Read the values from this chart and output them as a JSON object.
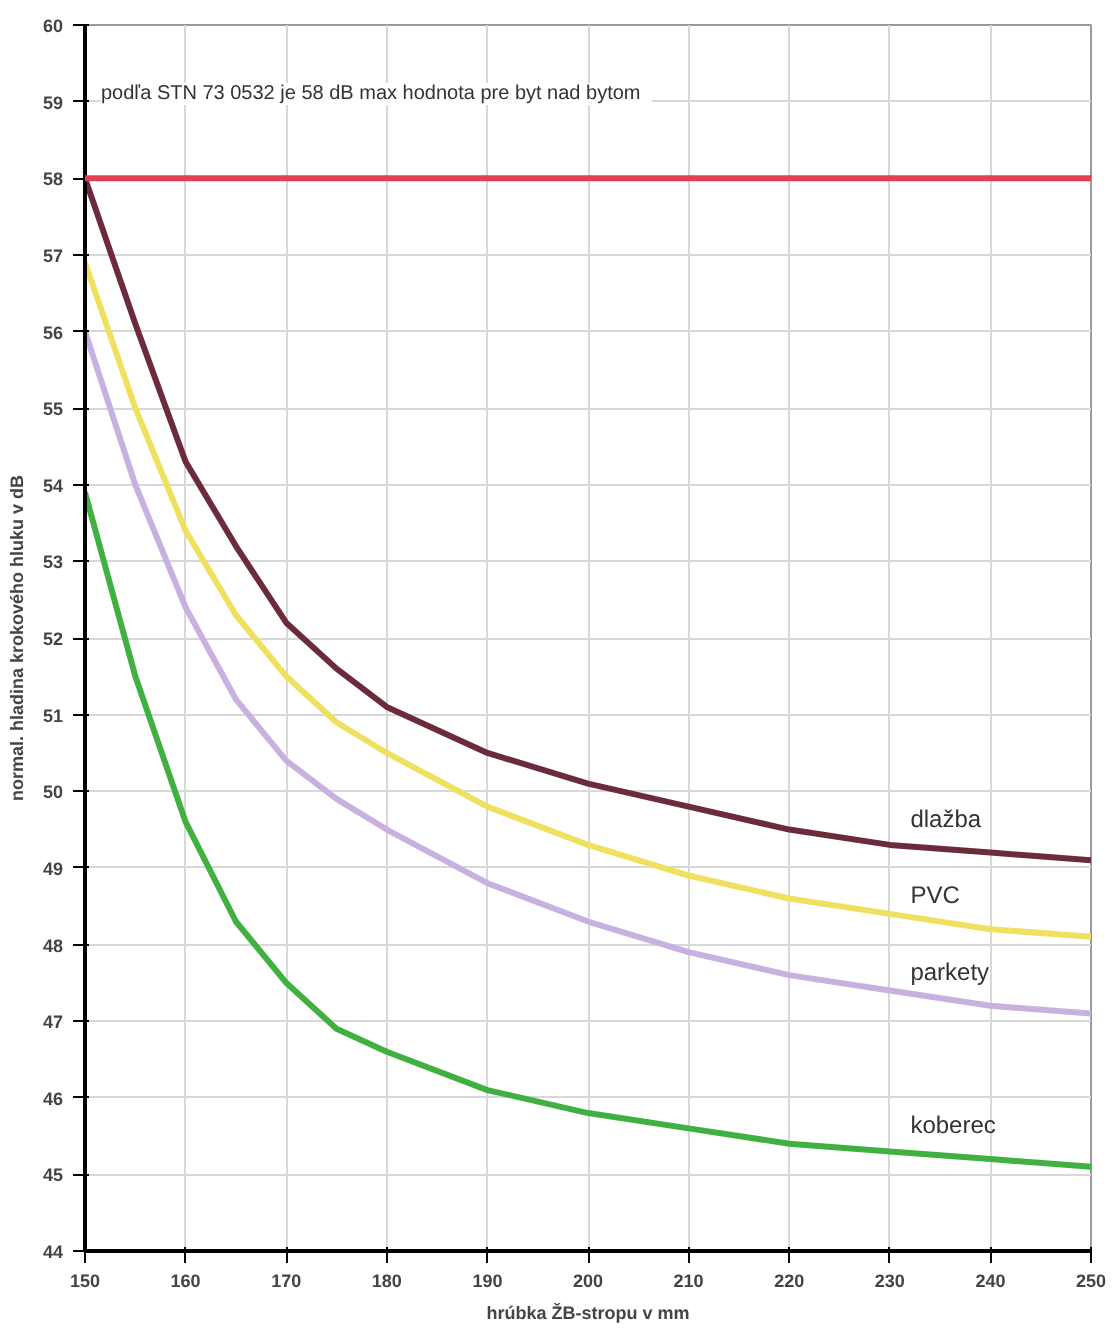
{
  "chart_data": {
    "type": "line",
    "xlabel": "hrúbka ŽB-stropu v mm",
    "ylabel": "normal. hladina krokového hluku v dB",
    "x": [
      150,
      155,
      160,
      165,
      170,
      175,
      180,
      190,
      200,
      210,
      220,
      230,
      240,
      250
    ],
    "series": [
      {
        "name": "dlažba",
        "color": "#6b2b3a",
        "values": [
          58,
          56.1,
          54.3,
          53.2,
          52.2,
          51.6,
          51.1,
          50.5,
          50.1,
          49.8,
          49.5,
          49.3,
          49.2,
          49.1
        ]
      },
      {
        "name": "PVC",
        "color": "#f0e060",
        "values": [
          56.9,
          55.0,
          53.4,
          52.3,
          51.5,
          50.9,
          50.5,
          49.8,
          49.3,
          48.9,
          48.6,
          48.4,
          48.2,
          48.1
        ]
      },
      {
        "name": "parkety",
        "color": "#c8b0e0",
        "values": [
          56,
          54,
          52.4,
          51.2,
          50.4,
          49.9,
          49.5,
          48.8,
          48.3,
          47.9,
          47.6,
          47.4,
          47.2,
          47.1
        ]
      },
      {
        "name": "koberec",
        "color": "#40b040",
        "values": [
          53.9,
          51.5,
          49.6,
          48.3,
          47.5,
          46.9,
          46.6,
          46.1,
          45.8,
          45.6,
          45.4,
          45.3,
          45.2,
          45.1
        ]
      }
    ],
    "ref_lines": [
      {
        "axis": "y",
        "value": 58,
        "color": "#e04050"
      }
    ],
    "annotations": [
      "podľa STN 73 0532  je  58 dB max hodnota pre byt nad bytom"
    ],
    "xlim": [
      150,
      250
    ],
    "xticks": [
      150,
      160,
      170,
      180,
      190,
      200,
      210,
      220,
      230,
      240,
      250
    ],
    "ylim": [
      44,
      60
    ],
    "yticks": [
      44,
      45,
      46,
      47,
      48,
      49,
      50,
      51,
      52,
      53,
      54,
      55,
      56,
      57,
      58,
      59,
      60
    ],
    "grid": true,
    "marker": "none",
    "line_style": "solid"
  }
}
